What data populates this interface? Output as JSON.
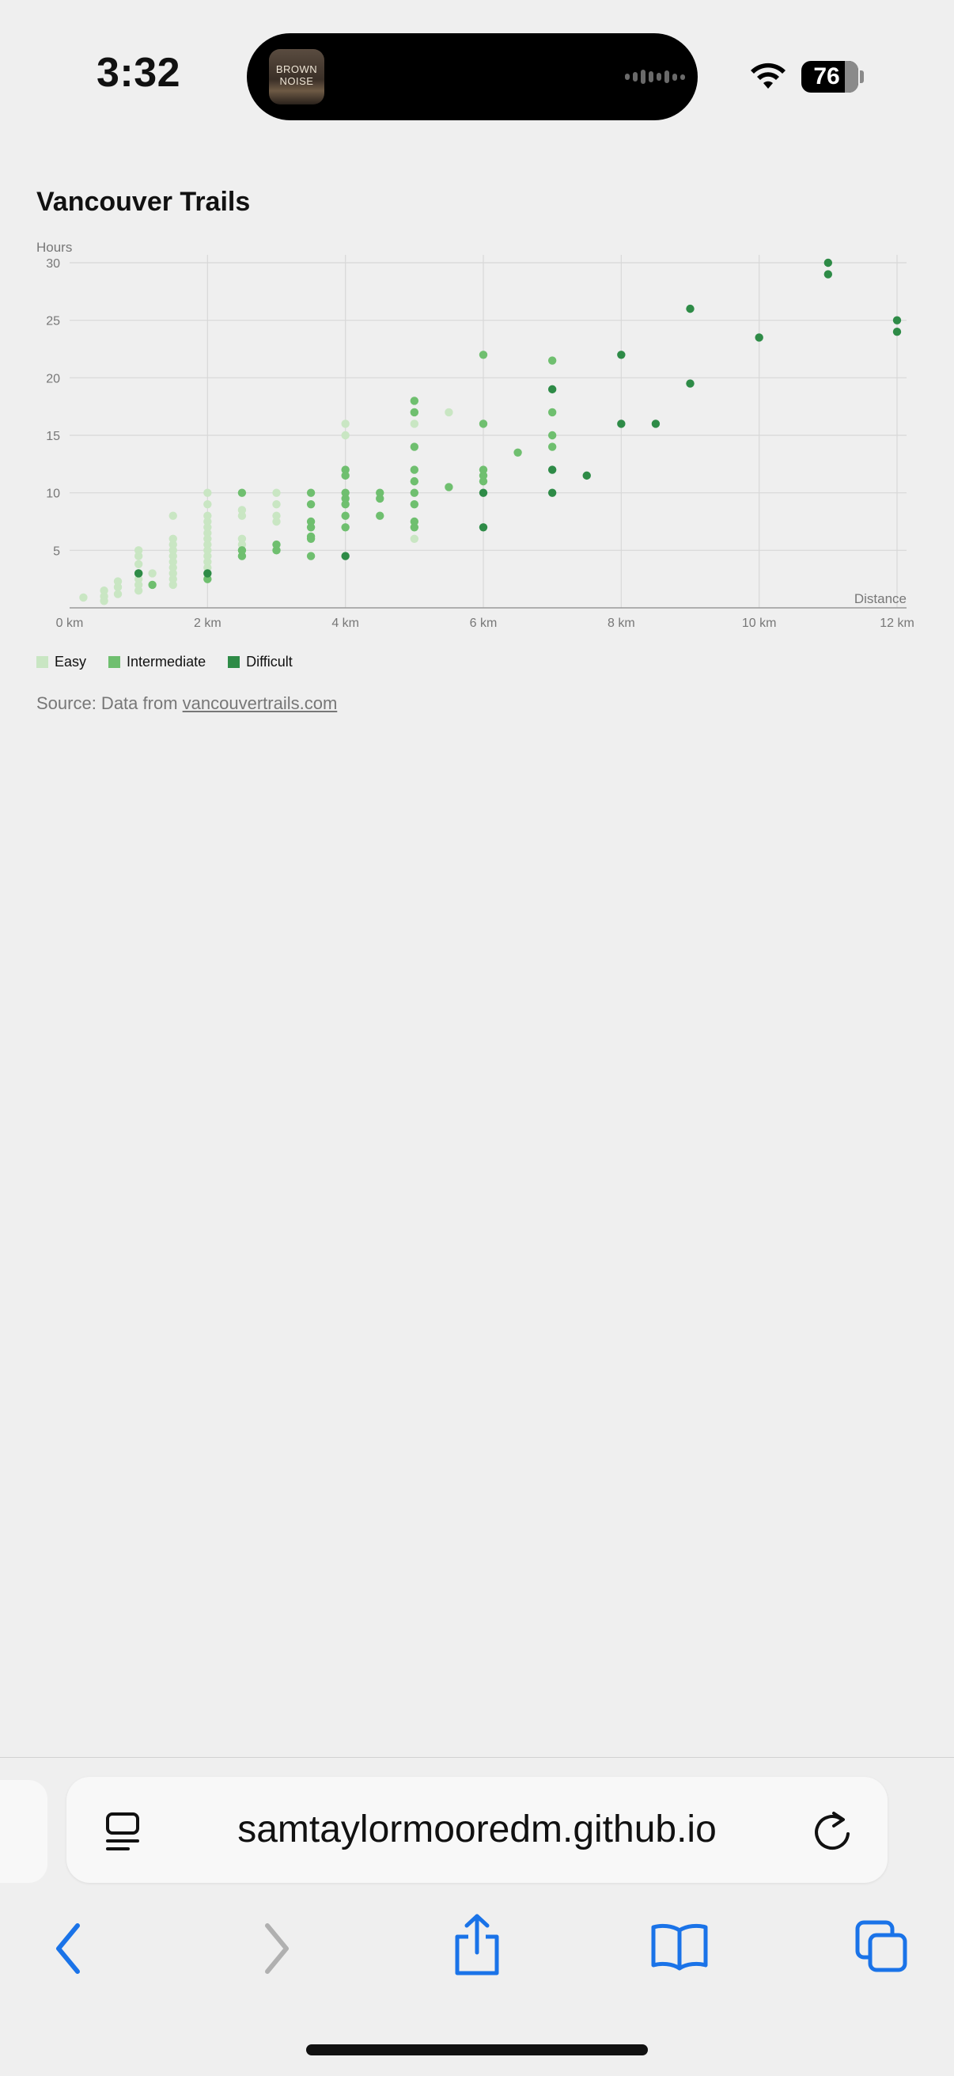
{
  "status": {
    "time": "3:32",
    "battery": "76",
    "now_playing_art": [
      "BROWN",
      "NOISE"
    ]
  },
  "page": {
    "title": "Vancouver Trails",
    "source_prefix": "Source: Data from ",
    "source_link": "vancouvertrails.com"
  },
  "browser": {
    "url": "samtaylormooredm.github.io"
  },
  "colors": {
    "easy": "#c9e6c3",
    "intermediate": "#6fbf6f",
    "difficult": "#2e8b47"
  },
  "chart_data": {
    "type": "scatter",
    "title": "Vancouver Trails",
    "xlabel": "Distance",
    "ylabel": "Hours",
    "xlim": [
      0,
      12
    ],
    "ylim": [
      0,
      30
    ],
    "xticks": [
      0,
      2,
      4,
      6,
      8,
      10,
      12
    ],
    "xtick_labels": [
      "0 km",
      "2 km",
      "4 km",
      "6 km",
      "8 km",
      "10 km",
      "12 km"
    ],
    "yticks": [
      5,
      10,
      15,
      20,
      25,
      30
    ],
    "ytick_labels": [
      "5",
      "10",
      "15",
      "20",
      "25",
      "30"
    ],
    "grid": true,
    "legend_position": "bottom-left",
    "series": [
      {
        "name": "Easy",
        "points": [
          [
            0.2,
            0.9
          ],
          [
            0.5,
            0.6
          ],
          [
            0.5,
            1.0
          ],
          [
            0.5,
            1.5
          ],
          [
            0.7,
            1.2
          ],
          [
            0.7,
            1.8
          ],
          [
            0.7,
            2.3
          ],
          [
            1.0,
            1.5
          ],
          [
            1.0,
            2.0
          ],
          [
            1.0,
            2.5
          ],
          [
            1.0,
            3.0
          ],
          [
            1.0,
            3.8
          ],
          [
            1.0,
            4.5
          ],
          [
            1.0,
            5.0
          ],
          [
            1.2,
            3.0
          ],
          [
            1.5,
            2.0
          ],
          [
            1.5,
            2.5
          ],
          [
            1.5,
            3.0
          ],
          [
            1.5,
            3.5
          ],
          [
            1.5,
            4.0
          ],
          [
            1.5,
            4.5
          ],
          [
            1.5,
            5.0
          ],
          [
            1.5,
            5.5
          ],
          [
            1.5,
            6.0
          ],
          [
            1.5,
            8.0
          ],
          [
            2.0,
            2.5
          ],
          [
            2.0,
            3.0
          ],
          [
            2.0,
            3.5
          ],
          [
            2.0,
            4.0
          ],
          [
            2.0,
            4.5
          ],
          [
            2.0,
            5.0
          ],
          [
            2.0,
            5.5
          ],
          [
            2.0,
            6.0
          ],
          [
            2.0,
            6.5
          ],
          [
            2.0,
            7.0
          ],
          [
            2.0,
            7.5
          ],
          [
            2.0,
            8.0
          ],
          [
            2.0,
            9.0
          ],
          [
            2.0,
            10.0
          ],
          [
            2.5,
            5.5
          ],
          [
            2.5,
            6.0
          ],
          [
            2.5,
            8.0
          ],
          [
            2.5,
            8.5
          ],
          [
            3.0,
            7.5
          ],
          [
            3.0,
            8.0
          ],
          [
            3.0,
            9.0
          ],
          [
            3.0,
            10.0
          ],
          [
            4.0,
            15.0
          ],
          [
            4.0,
            16.0
          ],
          [
            5.0,
            6.0
          ],
          [
            5.0,
            16.0
          ],
          [
            5.0,
            17.0
          ],
          [
            5.5,
            17.0
          ]
        ]
      },
      {
        "name": "Intermediate",
        "points": [
          [
            1.0,
            3.0
          ],
          [
            1.2,
            2.0
          ],
          [
            2.0,
            2.5
          ],
          [
            2.5,
            4.5
          ],
          [
            2.5,
            5.0
          ],
          [
            2.5,
            10.0
          ],
          [
            3.0,
            5.0
          ],
          [
            3.0,
            5.5
          ],
          [
            3.5,
            4.5
          ],
          [
            3.5,
            6.0
          ],
          [
            3.5,
            6.2
          ],
          [
            3.5,
            7.0
          ],
          [
            3.5,
            7.5
          ],
          [
            3.5,
            9.0
          ],
          [
            3.5,
            10.0
          ],
          [
            4.0,
            7.0
          ],
          [
            4.0,
            8.0
          ],
          [
            4.0,
            9.0
          ],
          [
            4.0,
            9.5
          ],
          [
            4.0,
            10.0
          ],
          [
            4.0,
            11.5
          ],
          [
            4.0,
            12.0
          ],
          [
            4.5,
            8.0
          ],
          [
            4.5,
            9.5
          ],
          [
            4.5,
            10.0
          ],
          [
            5.0,
            7.0
          ],
          [
            5.0,
            7.5
          ],
          [
            5.0,
            9.0
          ],
          [
            5.0,
            10.0
          ],
          [
            5.0,
            11.0
          ],
          [
            5.0,
            12.0
          ],
          [
            5.0,
            14.0
          ],
          [
            5.0,
            17.0
          ],
          [
            5.0,
            18.0
          ],
          [
            5.5,
            10.5
          ],
          [
            6.0,
            11.0
          ],
          [
            6.0,
            11.5
          ],
          [
            6.0,
            12.0
          ],
          [
            6.0,
            16.0
          ],
          [
            6.0,
            22.0
          ],
          [
            6.5,
            13.5
          ],
          [
            7.0,
            14.0
          ],
          [
            7.0,
            15.0
          ],
          [
            7.0,
            17.0
          ],
          [
            7.0,
            21.5
          ]
        ]
      },
      {
        "name": "Difficult",
        "points": [
          [
            1.0,
            3.0
          ],
          [
            2.0,
            3.0
          ],
          [
            4.0,
            4.5
          ],
          [
            6.0,
            7.0
          ],
          [
            6.0,
            10.0
          ],
          [
            7.0,
            10.0
          ],
          [
            7.0,
            12.0
          ],
          [
            7.0,
            19.0
          ],
          [
            7.5,
            11.5
          ],
          [
            8.0,
            16.0
          ],
          [
            8.0,
            22.0
          ],
          [
            8.5,
            16.0
          ],
          [
            9.0,
            19.5
          ],
          [
            9.0,
            26.0
          ],
          [
            10.0,
            23.5
          ],
          [
            11.0,
            29.0
          ],
          [
            11.0,
            30.0
          ],
          [
            12.0,
            24.0
          ],
          [
            12.0,
            25.0
          ]
        ]
      }
    ]
  }
}
